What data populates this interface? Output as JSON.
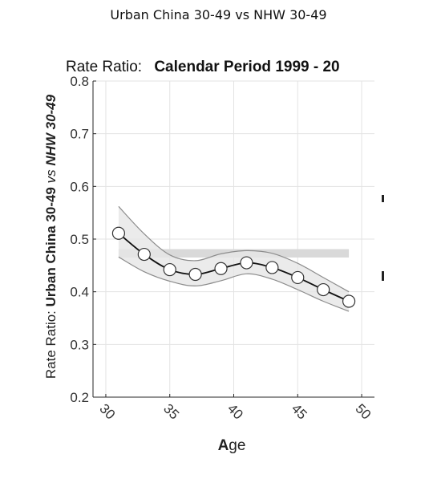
{
  "page_title": "Urban China 30-49 vs NHW 30-49",
  "chart_data": {
    "type": "line",
    "title_prefix": "Rate Ratio:",
    "title_main": "Calendar Period 1999 - 20",
    "xlabel_bold": "A",
    "xlabel_rest": "ge",
    "ylabel_parts": {
      "prefix": "Rate Ratio: ",
      "group1": "Urban China 30-49",
      "vs": " vs ",
      "group2": "NHW 30-49"
    },
    "xlim": [
      29,
      51
    ],
    "ylim": [
      0.2,
      0.8
    ],
    "xticks": [
      "30",
      "35",
      "40",
      "45",
      "50"
    ],
    "xtick_values": [
      30,
      35,
      40,
      45,
      50
    ],
    "yticks": [
      "0.2",
      "0.3",
      "0.4",
      "0.5",
      "0.6",
      "0.7",
      "0.8"
    ],
    "ytick_values": [
      0.2,
      0.3,
      0.4,
      0.5,
      0.6,
      0.7,
      0.8
    ],
    "grid": true,
    "x": [
      31,
      33,
      35,
      37,
      39,
      41,
      43,
      45,
      47,
      49
    ],
    "y": [
      0.511,
      0.471,
      0.442,
      0.433,
      0.444,
      0.455,
      0.446,
      0.427,
      0.404,
      0.382
    ],
    "band_upper": [
      0.562,
      0.51,
      0.47,
      0.459,
      0.472,
      0.478,
      0.473,
      0.454,
      0.427,
      0.4
    ],
    "band_lower": [
      0.466,
      0.438,
      0.42,
      0.411,
      0.421,
      0.434,
      0.424,
      0.404,
      0.382,
      0.363
    ],
    "reference_band": {
      "x": [
        31,
        49
      ],
      "y_low": 0.465,
      "y_high": 0.481
    },
    "colors": {
      "line": "#111111",
      "marker_fill": "#ffffff",
      "ci_fill": "#e6e6e6",
      "ci_edge": "#8c8c8c",
      "ref_band": "#d9d9d9",
      "grid": "#e3e3e3",
      "axis": "#262626"
    }
  }
}
